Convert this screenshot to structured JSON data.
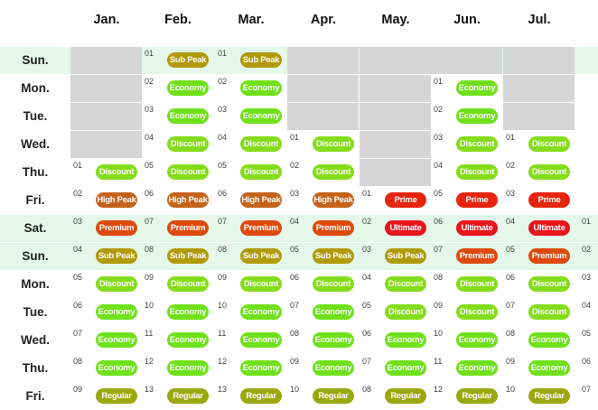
{
  "months": [
    "Jan.",
    "Feb.",
    "Mar.",
    "Apr.",
    "May.",
    "Jun.",
    "Jul."
  ],
  "days": [
    "Sun.",
    "Mon.",
    "Tue.",
    "Wed.",
    "Thu.",
    "Fri.",
    "Sat.",
    "Sun.",
    "Mon.",
    "Tue.",
    "Wed.",
    "Thu.",
    "Fri."
  ],
  "tiers": {
    "Sub Peak": "#b09a0a",
    "Economy": "#6fe01a",
    "Discount": "#84dc1a",
    "High Peak": "#c4621a",
    "Premium": "#de4a0e",
    "Prime": "#e6240f",
    "Ultimate": "#e8141c",
    "Regular": "#9aa80e"
  },
  "grid": [
    [
      null,
      [
        "01",
        "Sub Peak"
      ],
      [
        "01",
        "Sub Peak"
      ],
      null,
      null,
      null,
      null
    ],
    [
      null,
      [
        "02",
        "Economy"
      ],
      [
        "02",
        "Economy"
      ],
      null,
      null,
      [
        "01",
        "Economy"
      ],
      null
    ],
    [
      null,
      [
        "03",
        "Economy"
      ],
      [
        "03",
        "Economy"
      ],
      null,
      null,
      [
        "02",
        "Economy"
      ],
      null
    ],
    [
      null,
      [
        "04",
        "Discount"
      ],
      [
        "04",
        "Discount"
      ],
      [
        "01",
        "Discount"
      ],
      null,
      [
        "03",
        "Discount"
      ],
      [
        "01",
        "Discount"
      ]
    ],
    [
      [
        "01",
        "Discount"
      ],
      [
        "05",
        "Discount"
      ],
      [
        "05",
        "Discount"
      ],
      [
        "02",
        "Discount"
      ],
      null,
      [
        "04",
        "Discount"
      ],
      [
        "02",
        "Discount"
      ]
    ],
    [
      [
        "02",
        "High Peak"
      ],
      [
        "06",
        "High Peak"
      ],
      [
        "06",
        "High Peak"
      ],
      [
        "03",
        "High Peak"
      ],
      [
        "01",
        "Prime"
      ],
      [
        "05",
        "Prime"
      ],
      [
        "03",
        "Prime"
      ]
    ],
    [
      [
        "03",
        "Premium"
      ],
      [
        "07",
        "Premium"
      ],
      [
        "07",
        "Premium"
      ],
      [
        "04",
        "Premium"
      ],
      [
        "02",
        "Ultimate"
      ],
      [
        "06",
        "Ultimate"
      ],
      [
        "04",
        "Ultimate"
      ]
    ],
    [
      [
        "04",
        "Sub Peak"
      ],
      [
        "08",
        "Sub Peak"
      ],
      [
        "08",
        "Sub Peak"
      ],
      [
        "05",
        "Sub Peak"
      ],
      [
        "03",
        "Sub Peak"
      ],
      [
        "07",
        "Premium"
      ],
      [
        "05",
        "Premium"
      ]
    ],
    [
      [
        "05",
        "Discount"
      ],
      [
        "09",
        "Discount"
      ],
      [
        "09",
        "Discount"
      ],
      [
        "06",
        "Discount"
      ],
      [
        "04",
        "Discount"
      ],
      [
        "08",
        "Discount"
      ],
      [
        "06",
        "Discount"
      ]
    ],
    [
      [
        "06",
        "Economy"
      ],
      [
        "10",
        "Economy"
      ],
      [
        "10",
        "Economy"
      ],
      [
        "07",
        "Economy"
      ],
      [
        "05",
        "Discount"
      ],
      [
        "09",
        "Discount"
      ],
      [
        "07",
        "Discount"
      ]
    ],
    [
      [
        "07",
        "Economy"
      ],
      [
        "11",
        "Economy"
      ],
      [
        "11",
        "Economy"
      ],
      [
        "08",
        "Economy"
      ],
      [
        "06",
        "Economy"
      ],
      [
        "10",
        "Economy"
      ],
      [
        "08",
        "Economy"
      ]
    ],
    [
      [
        "08",
        "Economy"
      ],
      [
        "12",
        "Economy"
      ],
      [
        "12",
        "Economy"
      ],
      [
        "09",
        "Economy"
      ],
      [
        "07",
        "Economy"
      ],
      [
        "11",
        "Economy"
      ],
      [
        "09",
        "Economy"
      ]
    ],
    [
      [
        "09",
        "Regular"
      ],
      [
        "13",
        "Regular"
      ],
      [
        "13",
        "Regular"
      ],
      [
        "10",
        "Regular"
      ],
      [
        "08",
        "Regular"
      ],
      [
        "12",
        "Regular"
      ],
      [
        "10",
        "Regular"
      ]
    ]
  ],
  "edge_numbers": [
    "01",
    "02",
    "03",
    "04",
    "05",
    "06",
    "07"
  ]
}
